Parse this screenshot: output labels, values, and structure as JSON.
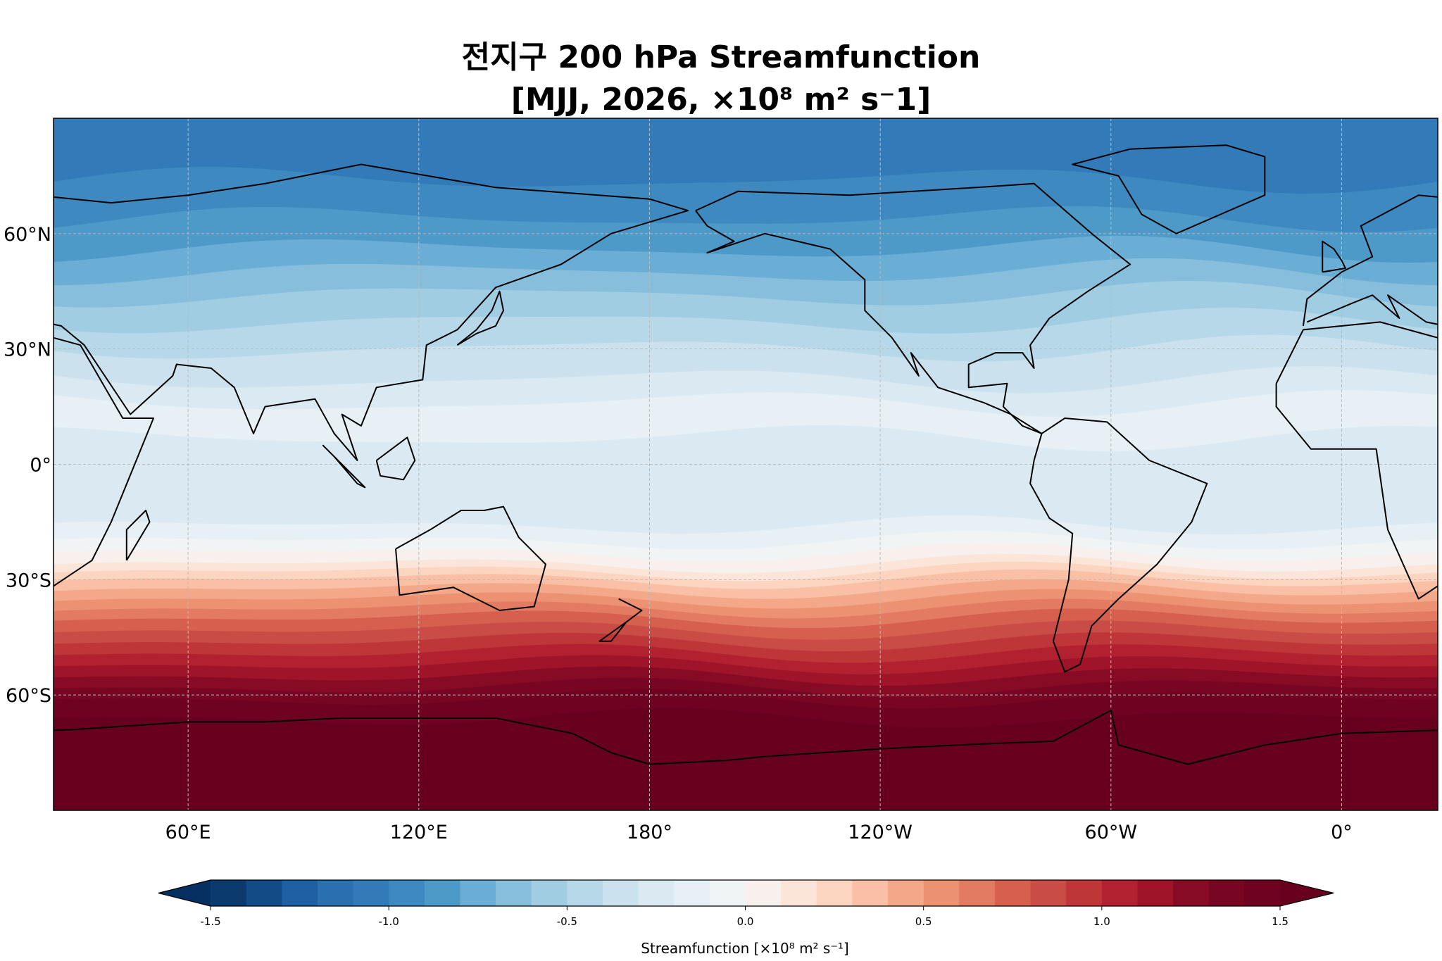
{
  "chart_data": {
    "type": "heatmap",
    "subtype": "filled-contour-map",
    "title_line1": "전지구 200 hPa Streamfunction",
    "title_line2": "[MJJ, 2026, ×10⁸ m² s⁻1]",
    "projection": "PlateCarree",
    "central_longitude": 205,
    "lon_ticks": [
      "60°E",
      "120°E",
      "180°",
      "120°W",
      "60°W",
      "0°"
    ],
    "lon_tick_values": [
      60,
      120,
      180,
      240,
      300,
      360
    ],
    "lat_ticks": [
      "60°N",
      "30°N",
      "0°",
      "30°S",
      "60°S"
    ],
    "lat_tick_values": [
      60,
      30,
      0,
      -30,
      -60
    ],
    "gridlines": true,
    "colormap": "RdBu_r",
    "levels_min": -1.5,
    "levels_max": 1.5,
    "level_step": 0.1,
    "colors": [
      "#0a3a6e",
      "#134b87",
      "#1f5fa3",
      "#2a6fb0",
      "#327bb8",
      "#3d89c0",
      "#4d9ac9",
      "#6aadd5",
      "#86bedc",
      "#a1cde3",
      "#b7d8e9",
      "#cbe2ee",
      "#dae9f2",
      "#e6f0f5",
      "#f1f4f5",
      "#f7f0ec",
      "#fbe4d8",
      "#fcd5c0",
      "#f9c0a5",
      "#f4a88a",
      "#ec9272",
      "#e27b61",
      "#d6604d",
      "#c94c46",
      "#bf3639",
      "#b2212f",
      "#9f1429",
      "#870b25",
      "#780622",
      "#6e0220"
    ],
    "extend_low_color": "#053061",
    "extend_high_color": "#67001f",
    "zonal_bands": [
      {
        "lat_top": 90,
        "lat_bottom": 74,
        "level_index": 4
      },
      {
        "lat_top": 74,
        "lat_bottom": 64,
        "level_index": 5
      },
      {
        "lat_top": 64,
        "lat_bottom": 56,
        "level_index": 6
      },
      {
        "lat_top": 56,
        "lat_bottom": 50,
        "level_index": 7
      },
      {
        "lat_top": 50,
        "lat_bottom": 44,
        "level_index": 8
      },
      {
        "lat_top": 44,
        "lat_bottom": 37,
        "level_index": 9
      },
      {
        "lat_top": 37,
        "lat_bottom": 30,
        "level_index": 10
      },
      {
        "lat_top": 30,
        "lat_bottom": 22,
        "level_index": 11
      },
      {
        "lat_top": 22,
        "lat_bottom": 16,
        "level_index": 12
      },
      {
        "lat_top": 16,
        "lat_bottom": 7,
        "level_index": 13
      },
      {
        "lat_top": 7,
        "lat_bottom": -16,
        "level_index": 12
      },
      {
        "lat_top": -16,
        "lat_bottom": -20,
        "level_index": 13
      },
      {
        "lat_top": -20,
        "lat_bottom": -23,
        "level_index": 14
      },
      {
        "lat_top": -23,
        "lat_bottom": -26,
        "level_index": 15
      },
      {
        "lat_top": -26,
        "lat_bottom": -28,
        "level_index": 16
      },
      {
        "lat_top": -28,
        "lat_bottom": -30,
        "level_index": 17
      },
      {
        "lat_top": -30,
        "lat_bottom": -32.5,
        "level_index": 18
      },
      {
        "lat_top": -32.5,
        "lat_bottom": -35,
        "level_index": 19
      },
      {
        "lat_top": -35,
        "lat_bottom": -37.5,
        "level_index": 20
      },
      {
        "lat_top": -37.5,
        "lat_bottom": -40,
        "level_index": 21
      },
      {
        "lat_top": -40,
        "lat_bottom": -43,
        "level_index": 22
      },
      {
        "lat_top": -43,
        "lat_bottom": -46,
        "level_index": 23
      },
      {
        "lat_top": -46,
        "lat_bottom": -49,
        "level_index": 24
      },
      {
        "lat_top": -49,
        "lat_bottom": -52,
        "level_index": 25
      },
      {
        "lat_top": -52,
        "lat_bottom": -55,
        "level_index": 26
      },
      {
        "lat_top": -55,
        "lat_bottom": -58,
        "level_index": 27
      },
      {
        "lat_top": -58,
        "lat_bottom": -61,
        "level_index": 28
      },
      {
        "lat_top": -61,
        "lat_bottom": -66,
        "level_index": 29
      },
      {
        "lat_top": -66,
        "lat_bottom": -90,
        "level_index": 30
      }
    ],
    "colorbar": {
      "ticks": [
        "-1.5",
        "-1.0",
        "-0.5",
        "0.0",
        "0.5",
        "1.0",
        "1.5"
      ],
      "tick_values": [
        -1.5,
        -1.0,
        -0.5,
        0.0,
        0.5,
        1.0,
        1.5
      ],
      "label": "Streamfunction [×10⁸ m² s⁻¹]",
      "orientation": "horizontal",
      "extend": "both"
    }
  }
}
